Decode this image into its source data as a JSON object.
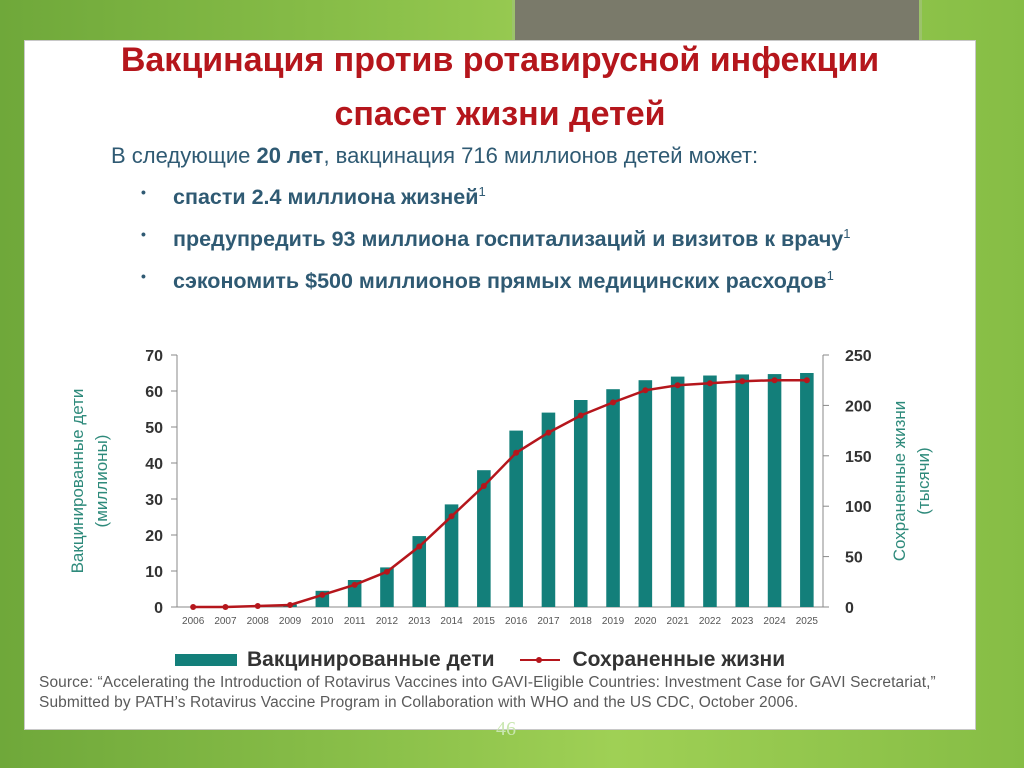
{
  "slide": {
    "title_line1": "Вакцинация против ротавирусной инфекции",
    "title_line2": "спасет жизни детей",
    "intro_prefix": "В следующие ",
    "intro_bold": "20 лет",
    "intro_suffix": ", вакцинация 716 миллионов детей может:",
    "bullets": [
      {
        "text": "спасти 2.4 миллиона жизней",
        "sup": "1"
      },
      {
        "text": "предупредить 93 миллиона госпитализаций и визитов к врачу",
        "sup": "1"
      },
      {
        "text": "сэкономить $500 миллионов прямых медицинских расходов",
        "sup": "1"
      }
    ],
    "bullet_marker": "•",
    "legend": {
      "bars": "Вакцинированные дети",
      "line": "Сохраненные жизни"
    },
    "source": "Source: “Accelerating the Introduction of Rotavirus Vaccines into GAVI-Eligible Countries: Investment Case for GAVI Secretariat,” Submitted by PATH’s Rotavirus Vaccine Program in Collaboration with WHO and the US CDC, October 2006.",
    "page_number": "46",
    "colors": {
      "accent": "#b5161c",
      "bar": "#137f7a",
      "text": "#2f5a73"
    }
  },
  "chart_data": {
    "type": "bar",
    "categories": [
      "2006",
      "2007",
      "2008",
      "2009",
      "2010",
      "2011",
      "2012",
      "2013",
      "2014",
      "2015",
      "2016",
      "2017",
      "2018",
      "2019",
      "2020",
      "2021",
      "2022",
      "2023",
      "2024",
      "2025"
    ],
    "series": [
      {
        "name": "Вакцинированные дети",
        "type": "bar",
        "axis": "left",
        "values": [
          0,
          0,
          0.3,
          0.7,
          4.5,
          7.5,
          11,
          19.7,
          28.5,
          38,
          49,
          54,
          57.5,
          60.5,
          63,
          64,
          64.3,
          64.6,
          64.7,
          65
        ]
      },
      {
        "name": "Сохраненные жизни",
        "type": "line",
        "axis": "right",
        "values": [
          0,
          0,
          1,
          2,
          12,
          22,
          35,
          60,
          90,
          120,
          153,
          173,
          190,
          203,
          215,
          220,
          222,
          224,
          225,
          225
        ]
      }
    ],
    "ylabel": "Вакцинированные дети (миллионы)",
    "ylabel_line1": "Вакцинированные дети",
    "ylabel_line2": "(миллионы)",
    "y2label": "Сохраненные жизни (тысячи)",
    "y2label_line1": "Сохраненные жизни",
    "y2label_line2": "(тысячи)",
    "ylim": [
      0,
      70
    ],
    "y2lim": [
      0,
      250
    ],
    "yticks": [
      0,
      10,
      20,
      30,
      40,
      50,
      60,
      70
    ],
    "y2ticks": [
      0,
      50,
      100,
      150,
      200,
      250
    ],
    "grid": false,
    "legend": "bottom"
  }
}
